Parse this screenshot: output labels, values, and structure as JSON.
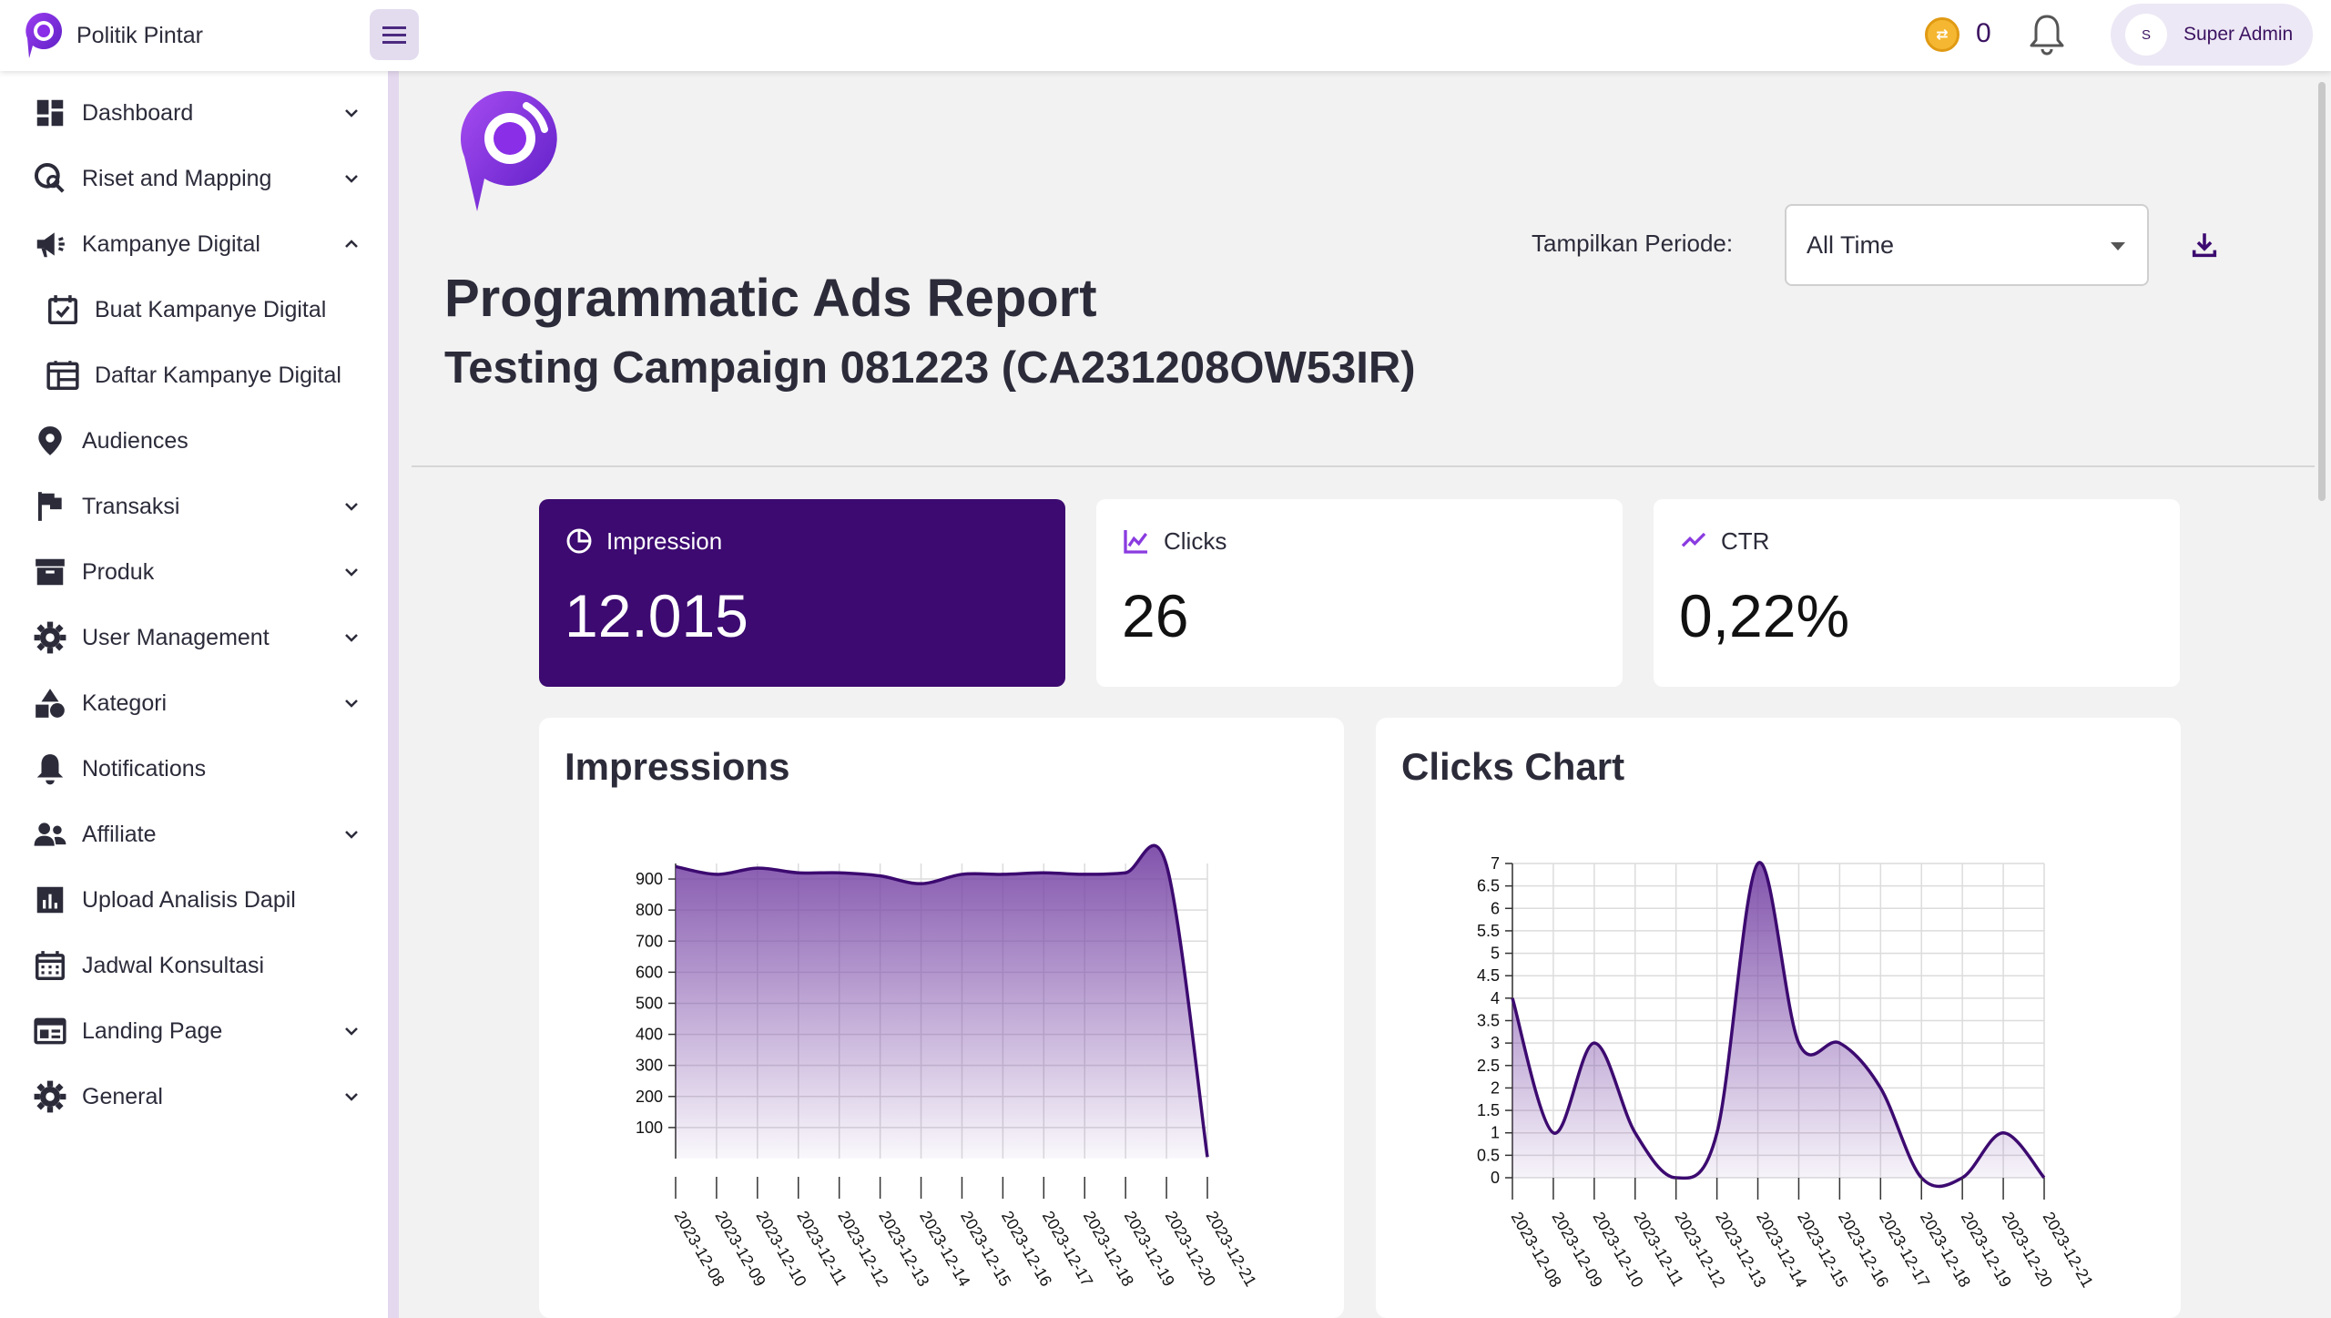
{
  "header": {
    "brand_name": "Politik Pintar",
    "coin_count": "0",
    "user_initial": "S",
    "user_name": "Super Admin"
  },
  "sidebar": {
    "items": [
      {
        "label": "Dashboard",
        "icon": "dashboard-icon",
        "chevron": "down"
      },
      {
        "label": "Riset and Mapping",
        "icon": "map-search-icon",
        "chevron": "down"
      },
      {
        "label": "Kampanye Digital",
        "icon": "megaphone-icon",
        "chevron": "up"
      },
      {
        "label": "Buat Kampanye Digital",
        "icon": "calendar-check-icon",
        "chevron": "",
        "sub": true
      },
      {
        "label": "Daftar Kampanye Digital",
        "icon": "calendar-list-icon",
        "chevron": "",
        "sub": true
      },
      {
        "label": "Audiences",
        "icon": "location-pin-icon",
        "chevron": ""
      },
      {
        "label": "Transaksi",
        "icon": "flag-icon",
        "chevron": "down"
      },
      {
        "label": "Produk",
        "icon": "archive-icon",
        "chevron": "down"
      },
      {
        "label": "User Management",
        "icon": "gear-icon",
        "chevron": "down"
      },
      {
        "label": "Kategori",
        "icon": "shapes-icon",
        "chevron": "down"
      },
      {
        "label": "Notifications",
        "icon": "bell-icon",
        "chevron": ""
      },
      {
        "label": "Affiliate",
        "icon": "people-icon",
        "chevron": "down"
      },
      {
        "label": "Upload Analisis Dapil",
        "icon": "bar-chart-icon",
        "chevron": ""
      },
      {
        "label": "Jadwal Konsultasi",
        "icon": "calendar-icon",
        "chevron": ""
      },
      {
        "label": "Landing Page",
        "icon": "web-page-icon",
        "chevron": "down"
      },
      {
        "label": "General",
        "icon": "gear-icon",
        "chevron": "down"
      }
    ]
  },
  "main": {
    "title": "Programmatic Ads Report",
    "subtitle": "Testing Campaign 081223 (CA231208OW53IR)",
    "period_label": "Tampilkan Periode:",
    "period_value": "All Time",
    "stats": [
      {
        "label": "Impression",
        "value": "12.015",
        "icon": "pie-chart-icon"
      },
      {
        "label": "Clicks",
        "value": "26",
        "icon": "line-chart-icon"
      },
      {
        "label": "CTR",
        "value": "0,22%",
        "icon": "trend-icon"
      }
    ]
  },
  "colors": {
    "accent": "#3c0a70",
    "line": "#3c0a70",
    "fill": "#7b4aa8"
  },
  "chart_data": [
    {
      "type": "area",
      "title": "Impressions",
      "x": [
        "2023-12-08",
        "2023-12-09",
        "2023-12-10",
        "2023-12-11",
        "2023-12-12",
        "2023-12-13",
        "2023-12-14",
        "2023-12-15",
        "2023-12-16",
        "2023-12-17",
        "2023-12-18",
        "2023-12-19",
        "2023-12-20",
        "2023-12-21"
      ],
      "values": [
        940,
        915,
        935,
        920,
        920,
        910,
        885,
        915,
        915,
        920,
        915,
        920,
        945,
        5
      ],
      "yticks": [
        100,
        200,
        300,
        400,
        500,
        600,
        700,
        800,
        900
      ],
      "ylim": [
        0,
        950
      ],
      "grid": true
    },
    {
      "type": "area",
      "title": "Clicks Chart",
      "x": [
        "2023-12-08",
        "2023-12-09",
        "2023-12-10",
        "2023-12-11",
        "2023-12-12",
        "2023-12-13",
        "2023-12-14",
        "2023-12-15",
        "2023-12-16",
        "2023-12-17",
        "2023-12-18",
        "2023-12-19",
        "2023-12-20",
        "2023-12-21"
      ],
      "values": [
        4,
        1,
        3,
        1,
        0,
        1,
        7,
        3,
        3,
        2,
        0,
        0,
        1,
        0
      ],
      "yticks": [
        0,
        0.5,
        1,
        1.5,
        2,
        2.5,
        3,
        3.5,
        4,
        4.5,
        5,
        5.5,
        6,
        6.5,
        7
      ],
      "ylim": [
        0,
        7
      ],
      "grid": true
    }
  ]
}
